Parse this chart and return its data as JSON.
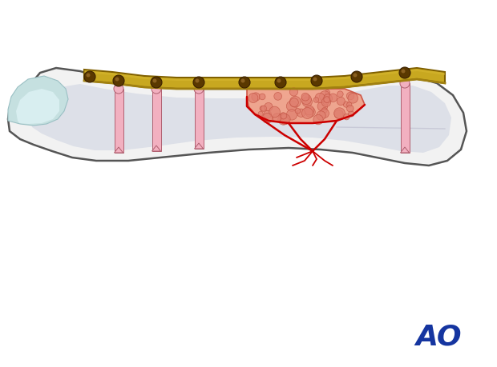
{
  "background_color": "#ffffff",
  "bone_outer_color": "#f2f2f2",
  "bone_outline_color": "#555555",
  "bone_inner_shadow_color": "#dde0e8",
  "bone_highlight_color": "#e8eaee",
  "epi_left_color": "#c5e0e0",
  "epi_left_outline": "#9ac0c4",
  "plate_color": "#c8a820",
  "plate_dark_color": "#a08010",
  "plate_outline_color": "#806000",
  "screw_hole_color": "#5a3800",
  "screw_color": "#f2b0c0",
  "screw_outline_color": "#b06070",
  "screw_thread_color": "#c07080",
  "graft_color": "#f0a088",
  "graft_outline_color": "#cc5040",
  "graft_dot_color": "#e08070",
  "graft_dot_outline": "#c05040",
  "fracture_color": "#cc0000",
  "ao_color": "#1535a0",
  "figsize": [
    6.2,
    4.59
  ],
  "dpi": 100
}
